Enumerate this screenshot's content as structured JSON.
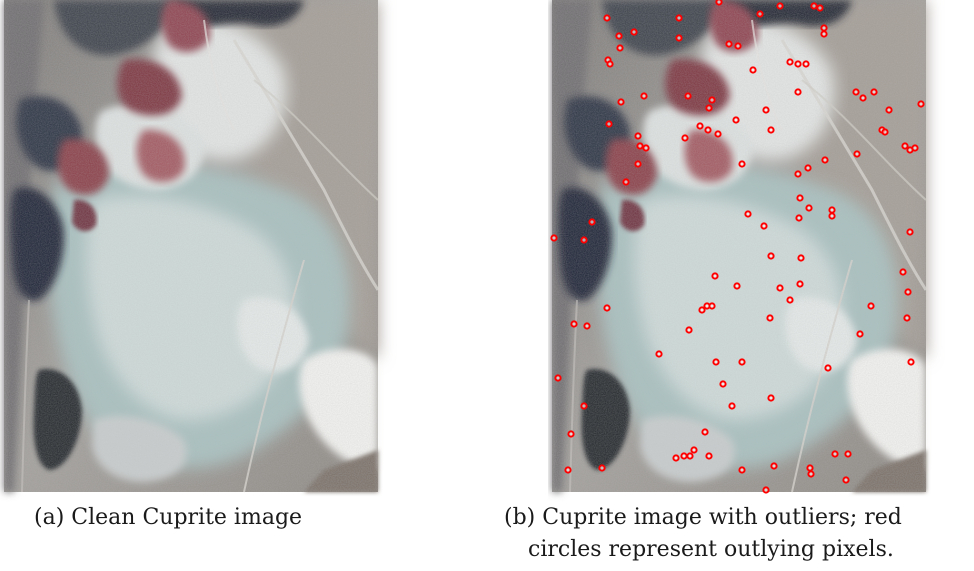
{
  "panels": [
    {
      "caption": "(a) Clean Cuprite image"
    },
    {
      "caption_line1": "(b) Cuprite image with outliers; red",
      "caption_line2": "circles represent outlying pixels.",
      "marker_color": "#ff0000"
    }
  ],
  "colors": {
    "background": "#ffffff",
    "terrain_light": "#d8dede",
    "terrain_teal": "#9fbcbc",
    "terrain_dark": "#1e2433",
    "terrain_red": "#8a3a45",
    "terrain_tan": "#9a8f86",
    "outlier_marker": "#ff0000"
  }
}
